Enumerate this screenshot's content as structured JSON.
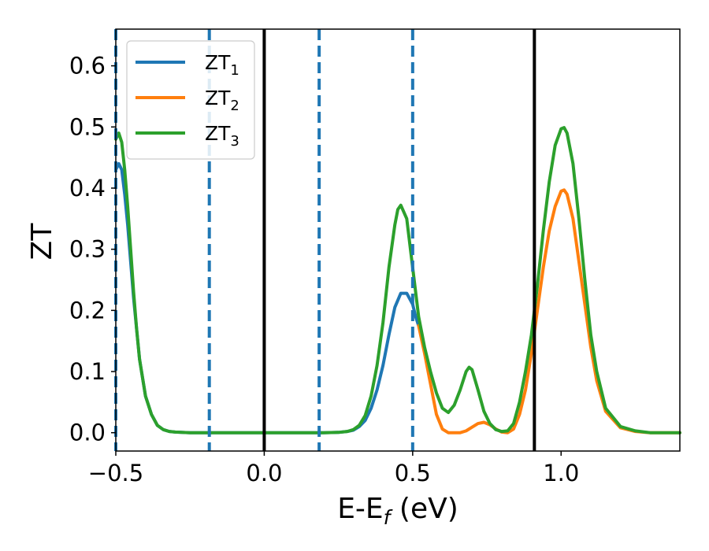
{
  "chart_data": {
    "type": "line",
    "xlabel_main": "E-E",
    "xlabel_sub": "f",
    "xlabel_unit": " (eV)",
    "ylabel": "ZT",
    "xlim": [
      -0.5,
      1.4
    ],
    "ylim": [
      -0.03,
      0.66
    ],
    "grid": false,
    "legend_position": "top-left",
    "x_ticks": [
      {
        "value": -0.5,
        "label": "−0.5"
      },
      {
        "value": 0.0,
        "label": "0.0"
      },
      {
        "value": 0.5,
        "label": "0.5"
      },
      {
        "value": 1.0,
        "label": "1.0"
      }
    ],
    "y_ticks": [
      {
        "value": 0.0,
        "label": "0.0"
      },
      {
        "value": 0.1,
        "label": "0.1"
      },
      {
        "value": 0.2,
        "label": "0.2"
      },
      {
        "value": 0.3,
        "label": "0.3"
      },
      {
        "value": 0.4,
        "label": "0.4"
      },
      {
        "value": 0.5,
        "label": "0.5"
      },
      {
        "value": 0.6,
        "label": "0.6"
      }
    ],
    "vlines_solid": [
      0.0,
      0.91
    ],
    "vlines_dashed": [
      -0.5,
      -0.185,
      0.185,
      0.5
    ],
    "series": [
      {
        "name": "ZT",
        "name_sub": "1",
        "color": "#1f77b4",
        "x": [
          -0.5,
          -0.49,
          -0.48,
          -0.47,
          -0.46,
          -0.45,
          -0.44,
          -0.43,
          -0.42,
          -0.4,
          -0.38,
          -0.36,
          -0.34,
          -0.32,
          -0.3,
          -0.25,
          -0.2,
          0.0,
          0.2,
          0.25,
          0.28,
          0.3,
          0.32,
          0.34,
          0.36,
          0.38,
          0.4,
          0.42,
          0.44,
          0.46,
          0.48,
          0.5,
          0.51,
          0.52
        ],
        "y": [
          0.43,
          0.44,
          0.43,
          0.39,
          0.34,
          0.28,
          0.22,
          0.17,
          0.12,
          0.06,
          0.03,
          0.012,
          0.005,
          0.002,
          0.001,
          0.0,
          0.0,
          0.0,
          0.0,
          0.0005,
          0.002,
          0.004,
          0.01,
          0.02,
          0.04,
          0.07,
          0.11,
          0.16,
          0.205,
          0.228,
          0.228,
          0.21,
          0.19,
          0.175
        ]
      },
      {
        "name": "ZT",
        "name_sub": "2",
        "color": "#ff7f0e",
        "x": [
          0.52,
          0.54,
          0.56,
          0.58,
          0.6,
          0.62,
          0.64,
          0.66,
          0.68,
          0.7,
          0.72,
          0.74,
          0.76,
          0.78,
          0.8,
          0.82,
          0.84,
          0.86,
          0.88,
          0.9,
          0.92,
          0.94,
          0.96,
          0.98,
          1.0,
          1.01,
          1.02,
          1.04,
          1.06,
          1.08,
          1.1,
          1.12,
          1.15,
          1.2,
          1.25,
          1.3,
          1.35,
          1.4
        ],
        "y": [
          0.175,
          0.13,
          0.08,
          0.03,
          0.006,
          0.0,
          0.0,
          0.0,
          0.003,
          0.009,
          0.015,
          0.017,
          0.013,
          0.006,
          0.001,
          0.0,
          0.006,
          0.03,
          0.07,
          0.13,
          0.2,
          0.27,
          0.33,
          0.37,
          0.395,
          0.397,
          0.39,
          0.35,
          0.28,
          0.21,
          0.14,
          0.085,
          0.035,
          0.008,
          0.002,
          0.0,
          0.0,
          0.0
        ]
      },
      {
        "name": "ZT",
        "name_sub": "3",
        "color": "#2ca02c",
        "x": [
          -0.5,
          -0.49,
          -0.48,
          -0.47,
          -0.46,
          -0.45,
          -0.44,
          -0.43,
          -0.42,
          -0.4,
          -0.38,
          -0.36,
          -0.34,
          -0.32,
          -0.3,
          -0.25,
          -0.2,
          0.0,
          0.2,
          0.25,
          0.28,
          0.3,
          0.32,
          0.34,
          0.36,
          0.38,
          0.4,
          0.42,
          0.44,
          0.45,
          0.46,
          0.48,
          0.5,
          0.52,
          0.54,
          0.56,
          0.58,
          0.6,
          0.62,
          0.64,
          0.66,
          0.68,
          0.69,
          0.7,
          0.72,
          0.74,
          0.76,
          0.78,
          0.8,
          0.82,
          0.84,
          0.86,
          0.88,
          0.9,
          0.92,
          0.94,
          0.96,
          0.98,
          1.0,
          1.01,
          1.02,
          1.04,
          1.06,
          1.08,
          1.1,
          1.12,
          1.15,
          1.2,
          1.25,
          1.3,
          1.35,
          1.4
        ],
        "y": [
          0.48,
          0.49,
          0.475,
          0.43,
          0.37,
          0.3,
          0.23,
          0.17,
          0.12,
          0.06,
          0.03,
          0.012,
          0.005,
          0.002,
          0.001,
          0.0,
          0.0,
          0.0,
          0.0,
          0.0005,
          0.002,
          0.005,
          0.012,
          0.028,
          0.06,
          0.11,
          0.18,
          0.27,
          0.34,
          0.365,
          0.372,
          0.35,
          0.27,
          0.19,
          0.14,
          0.1,
          0.065,
          0.04,
          0.033,
          0.045,
          0.07,
          0.1,
          0.107,
          0.103,
          0.07,
          0.035,
          0.015,
          0.005,
          0.002,
          0.003,
          0.015,
          0.05,
          0.1,
          0.16,
          0.24,
          0.33,
          0.41,
          0.47,
          0.497,
          0.499,
          0.49,
          0.44,
          0.35,
          0.25,
          0.16,
          0.1,
          0.04,
          0.01,
          0.003,
          0.0,
          0.0,
          0.0
        ]
      }
    ]
  }
}
